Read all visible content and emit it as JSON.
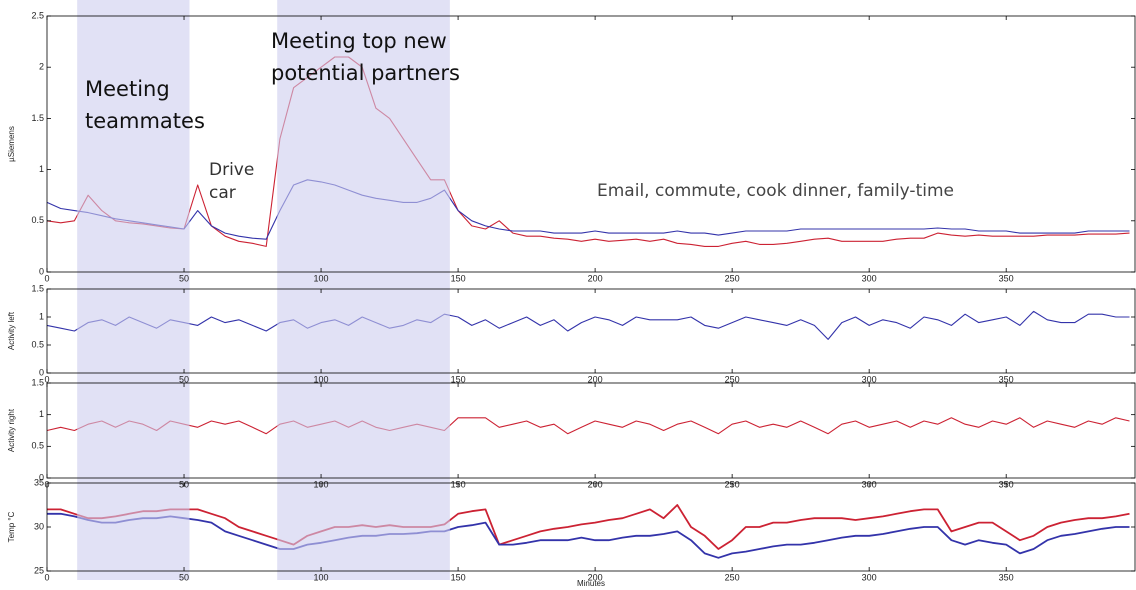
{
  "chart_data": [
    {
      "type": "line",
      "ylabel": "µSiemens",
      "xlim": [
        0,
        397
      ],
      "xticks": [
        0,
        50,
        100,
        150,
        200,
        250,
        300,
        350
      ],
      "ylim": [
        0,
        2.5
      ],
      "yticks": [
        0,
        0.5,
        1,
        1.5,
        2,
        2.5
      ],
      "x": [
        0,
        5,
        10,
        15,
        20,
        25,
        30,
        35,
        40,
        45,
        50,
        55,
        60,
        65,
        70,
        75,
        80,
        85,
        90,
        95,
        100,
        105,
        110,
        115,
        120,
        125,
        130,
        135,
        140,
        145,
        150,
        155,
        160,
        165,
        170,
        175,
        180,
        185,
        190,
        195,
        200,
        205,
        210,
        215,
        220,
        225,
        230,
        235,
        240,
        245,
        250,
        255,
        260,
        265,
        270,
        275,
        280,
        285,
        290,
        295,
        300,
        305,
        310,
        315,
        320,
        325,
        330,
        335,
        340,
        345,
        350,
        355,
        360,
        365,
        370,
        375,
        380,
        385,
        390,
        395
      ],
      "series": [
        {
          "name": "right",
          "color": "#cc2233",
          "values": [
            0.5,
            0.48,
            0.5,
            0.75,
            0.6,
            0.5,
            0.48,
            0.47,
            0.45,
            0.43,
            0.42,
            0.85,
            0.45,
            0.35,
            0.3,
            0.28,
            0.25,
            1.3,
            1.8,
            1.9,
            2.0,
            2.1,
            2.1,
            2.0,
            1.6,
            1.5,
            1.3,
            1.1,
            0.9,
            0.9,
            0.6,
            0.45,
            0.42,
            0.5,
            0.38,
            0.35,
            0.35,
            0.33,
            0.32,
            0.3,
            0.32,
            0.3,
            0.31,
            0.32,
            0.3,
            0.32,
            0.28,
            0.27,
            0.25,
            0.25,
            0.28,
            0.3,
            0.27,
            0.27,
            0.28,
            0.3,
            0.32,
            0.33,
            0.3,
            0.3,
            0.3,
            0.3,
            0.32,
            0.33,
            0.33,
            0.38,
            0.36,
            0.35,
            0.36,
            0.35,
            0.35,
            0.35,
            0.35,
            0.36,
            0.36,
            0.36,
            0.37,
            0.37,
            0.37,
            0.38
          ]
        },
        {
          "name": "left",
          "color": "#3333aa",
          "values": [
            0.68,
            0.62,
            0.6,
            0.58,
            0.55,
            0.52,
            0.5,
            0.48,
            0.46,
            0.44,
            0.42,
            0.6,
            0.45,
            0.38,
            0.35,
            0.33,
            0.32,
            0.6,
            0.85,
            0.9,
            0.88,
            0.85,
            0.8,
            0.75,
            0.72,
            0.7,
            0.68,
            0.68,
            0.72,
            0.8,
            0.6,
            0.5,
            0.45,
            0.42,
            0.4,
            0.4,
            0.4,
            0.38,
            0.38,
            0.38,
            0.4,
            0.38,
            0.38,
            0.38,
            0.38,
            0.38,
            0.4,
            0.38,
            0.38,
            0.36,
            0.38,
            0.4,
            0.4,
            0.4,
            0.4,
            0.42,
            0.42,
            0.42,
            0.42,
            0.42,
            0.42,
            0.42,
            0.42,
            0.42,
            0.42,
            0.43,
            0.42,
            0.42,
            0.4,
            0.4,
            0.4,
            0.38,
            0.38,
            0.38,
            0.38,
            0.38,
            0.4,
            0.4,
            0.4,
            0.4
          ]
        }
      ]
    },
    {
      "type": "line",
      "ylabel": "Activity left",
      "xlim": [
        0,
        397
      ],
      "xticks": [
        0,
        50,
        100,
        150,
        200,
        250,
        300,
        350
      ],
      "ylim": [
        0,
        1.5
      ],
      "yticks": [
        0,
        0.5,
        1,
        1.5
      ],
      "x": [
        0,
        5,
        10,
        15,
        20,
        25,
        30,
        35,
        40,
        45,
        50,
        55,
        60,
        65,
        70,
        75,
        80,
        85,
        90,
        95,
        100,
        105,
        110,
        115,
        120,
        125,
        130,
        135,
        140,
        145,
        150,
        155,
        160,
        165,
        170,
        175,
        180,
        185,
        190,
        195,
        200,
        205,
        210,
        215,
        220,
        225,
        230,
        235,
        240,
        245,
        250,
        255,
        260,
        265,
        270,
        275,
        280,
        285,
        290,
        295,
        300,
        305,
        310,
        315,
        320,
        325,
        330,
        335,
        340,
        345,
        350,
        355,
        360,
        365,
        370,
        375,
        380,
        385,
        390,
        395
      ],
      "series": [
        {
          "name": "left",
          "color": "#3333aa",
          "values": [
            0.85,
            0.8,
            0.75,
            0.9,
            0.95,
            0.85,
            1.0,
            0.9,
            0.8,
            0.95,
            0.9,
            0.85,
            1.0,
            0.9,
            0.95,
            0.85,
            0.75,
            0.9,
            0.95,
            0.8,
            0.9,
            0.95,
            0.85,
            1.0,
            0.9,
            0.8,
            0.85,
            0.95,
            0.9,
            1.05,
            1.0,
            0.85,
            0.95,
            0.8,
            0.9,
            1.0,
            0.85,
            0.95,
            0.75,
            0.9,
            1.0,
            0.95,
            0.85,
            1.0,
            0.95,
            0.95,
            0.95,
            1.0,
            0.85,
            0.8,
            0.9,
            1.0,
            0.95,
            0.9,
            0.85,
            0.95,
            0.85,
            0.6,
            0.9,
            1.0,
            0.85,
            0.95,
            0.9,
            0.8,
            1.0,
            0.95,
            0.85,
            1.05,
            0.9,
            0.95,
            1.0,
            0.85,
            1.1,
            0.95,
            0.9,
            0.9,
            1.05,
            1.05,
            1.0,
            1.0
          ]
        }
      ]
    },
    {
      "type": "line",
      "ylabel": "Activity right",
      "xlim": [
        0,
        397
      ],
      "xticks": [
        0,
        50,
        100,
        150,
        200,
        250,
        300,
        350
      ],
      "ylim": [
        0,
        1.5
      ],
      "yticks": [
        0,
        0.5,
        1,
        1.5
      ],
      "x": [
        0,
        5,
        10,
        15,
        20,
        25,
        30,
        35,
        40,
        45,
        50,
        55,
        60,
        65,
        70,
        75,
        80,
        85,
        90,
        95,
        100,
        105,
        110,
        115,
        120,
        125,
        130,
        135,
        140,
        145,
        150,
        155,
        160,
        165,
        170,
        175,
        180,
        185,
        190,
        195,
        200,
        205,
        210,
        215,
        220,
        225,
        230,
        235,
        240,
        245,
        250,
        255,
        260,
        265,
        270,
        275,
        280,
        285,
        290,
        295,
        300,
        305,
        310,
        315,
        320,
        325,
        330,
        335,
        340,
        345,
        350,
        355,
        360,
        365,
        370,
        375,
        380,
        385,
        390,
        395
      ],
      "series": [
        {
          "name": "right",
          "color": "#cc2233",
          "values": [
            0.75,
            0.8,
            0.75,
            0.85,
            0.9,
            0.8,
            0.9,
            0.85,
            0.75,
            0.9,
            0.85,
            0.8,
            0.9,
            0.85,
            0.9,
            0.8,
            0.7,
            0.85,
            0.9,
            0.8,
            0.85,
            0.9,
            0.8,
            0.9,
            0.8,
            0.75,
            0.8,
            0.85,
            0.8,
            0.75,
            0.95,
            0.95,
            0.95,
            0.8,
            0.85,
            0.9,
            0.8,
            0.85,
            0.7,
            0.8,
            0.9,
            0.85,
            0.8,
            0.9,
            0.85,
            0.75,
            0.85,
            0.9,
            0.8,
            0.7,
            0.85,
            0.9,
            0.8,
            0.85,
            0.8,
            0.9,
            0.8,
            0.7,
            0.85,
            0.9,
            0.8,
            0.85,
            0.9,
            0.8,
            0.9,
            0.85,
            0.95,
            0.85,
            0.8,
            0.9,
            0.85,
            0.95,
            0.8,
            0.9,
            0.85,
            0.8,
            0.9,
            0.85,
            0.95,
            0.9
          ]
        }
      ]
    },
    {
      "type": "line",
      "ylabel": "Temp °C",
      "xlabel": "Minutes",
      "xlim": [
        0,
        397
      ],
      "xticks": [
        0,
        50,
        100,
        150,
        200,
        250,
        300,
        350
      ],
      "ylim": [
        25,
        35
      ],
      "yticks": [
        25,
        30,
        35
      ],
      "x": [
        0,
        5,
        10,
        15,
        20,
        25,
        30,
        35,
        40,
        45,
        50,
        55,
        60,
        65,
        70,
        75,
        80,
        85,
        90,
        95,
        100,
        105,
        110,
        115,
        120,
        125,
        130,
        135,
        140,
        145,
        150,
        155,
        160,
        165,
        170,
        175,
        180,
        185,
        190,
        195,
        200,
        205,
        210,
        215,
        220,
        225,
        230,
        235,
        240,
        245,
        250,
        255,
        260,
        265,
        270,
        275,
        280,
        285,
        290,
        295,
        300,
        305,
        310,
        315,
        320,
        325,
        330,
        335,
        340,
        345,
        350,
        355,
        360,
        365,
        370,
        375,
        380,
        385,
        390,
        395
      ],
      "series": [
        {
          "name": "right",
          "color": "#cc2233",
          "values": [
            32,
            32,
            31.5,
            31,
            31,
            31.2,
            31.5,
            31.8,
            31.8,
            32,
            32,
            32,
            31.5,
            31,
            30,
            29.5,
            29,
            28.5,
            28,
            29,
            29.5,
            30,
            30,
            30.2,
            30,
            30.2,
            30,
            30,
            30,
            30.3,
            31.5,
            31.8,
            32,
            28,
            28.5,
            29,
            29.5,
            29.8,
            30,
            30.3,
            30.5,
            30.8,
            31,
            31.5,
            32,
            31,
            32.5,
            30,
            29,
            27.5,
            28.5,
            30,
            30,
            30.5,
            30.5,
            30.8,
            31,
            31,
            31,
            30.8,
            31,
            31.2,
            31.5,
            31.8,
            32,
            32,
            29.5,
            30,
            30.5,
            30.5,
            29.5,
            28.5,
            29,
            30,
            30.5,
            30.8,
            31,
            31,
            31.2,
            31.5
          ]
        },
        {
          "name": "left",
          "color": "#3333aa",
          "values": [
            31.5,
            31.5,
            31.2,
            30.8,
            30.5,
            30.5,
            30.8,
            31,
            31,
            31.2,
            31,
            30.8,
            30.5,
            29.5,
            29,
            28.5,
            28,
            27.5,
            27.5,
            28,
            28.2,
            28.5,
            28.8,
            29,
            29,
            29.2,
            29.2,
            29.3,
            29.5,
            29.5,
            30,
            30.2,
            30.5,
            28,
            28,
            28.2,
            28.5,
            28.5,
            28.5,
            28.8,
            28.5,
            28.5,
            28.8,
            29,
            29,
            29.2,
            29.5,
            28.5,
            27,
            26.5,
            27,
            27.2,
            27.5,
            27.8,
            28,
            28,
            28.2,
            28.5,
            28.8,
            29,
            29,
            29.2,
            29.5,
            29.8,
            30,
            30,
            28.5,
            28,
            28.5,
            28.2,
            28,
            27,
            27.5,
            28.5,
            29,
            29.2,
            29.5,
            29.8,
            30,
            30
          ]
        }
      ]
    }
  ],
  "annotations": {
    "regions": [
      [
        11,
        52
      ],
      [
        84,
        147
      ]
    ],
    "labels": [
      [
        "Meeting",
        "teammates"
      ],
      [
        "Drive",
        "car"
      ],
      [
        "Meeting top new",
        "potential partners"
      ],
      [
        "Email, commute, cook dinner, family-time"
      ]
    ]
  }
}
